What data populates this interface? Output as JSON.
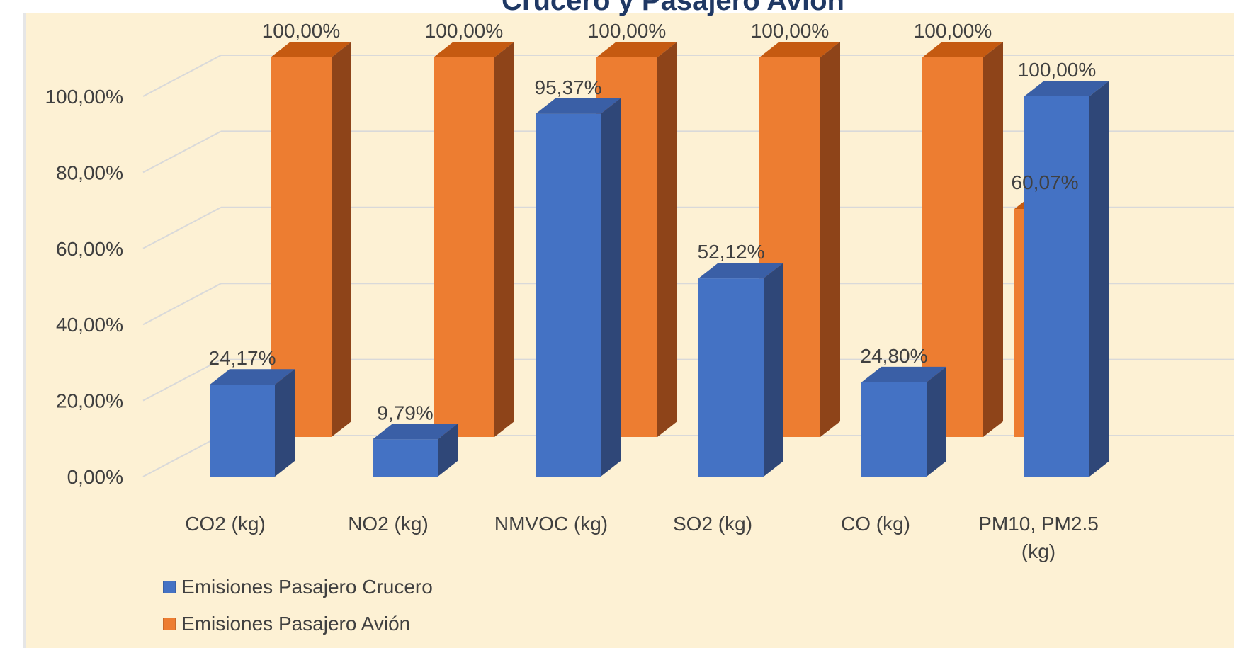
{
  "chart_data": {
    "type": "bar",
    "title": "Crucero y Pasajero Avión",
    "categories": [
      "CO2 (kg)",
      "NO2 (kg)",
      "NMVOC  (kg)",
      "SO2 (kg)",
      "CO  (kg)",
      "PM10, PM2.5 (kg)"
    ],
    "category_lines": [
      [
        "CO2 (kg)"
      ],
      [
        "NO2 (kg)"
      ],
      [
        "NMVOC  (kg)"
      ],
      [
        "SO2 (kg)"
      ],
      [
        "CO  (kg)"
      ],
      [
        "PM10, PM2.5",
        "(kg)"
      ]
    ],
    "series": [
      {
        "name": "Emisiones Pasajero Crucero",
        "color": "#4472C4",
        "values": [
          24.17,
          9.79,
          95.37,
          52.12,
          24.8,
          100.0
        ],
        "labels": [
          "24,17%",
          "9,79%",
          "95,37%",
          "52,12%",
          "24,80%",
          "100,00%"
        ]
      },
      {
        "name": "Emisiones Pasajero Avión",
        "color": "#ED7D31",
        "values": [
          100.0,
          100.0,
          100.0,
          100.0,
          100.0,
          60.07
        ],
        "labels": [
          "100,00%",
          "100,00%",
          "100,00%",
          "100,00%",
          "100,00%",
          "60,07%"
        ]
      }
    ],
    "yticks": [
      "0,00%",
      "20,00%",
      "40,00%",
      "60,00%",
      "80,00%",
      "100,00%"
    ],
    "ylim": [
      0,
      100
    ],
    "grid": true,
    "legend_position": "bottom-left",
    "background": "#FDF1D4"
  }
}
